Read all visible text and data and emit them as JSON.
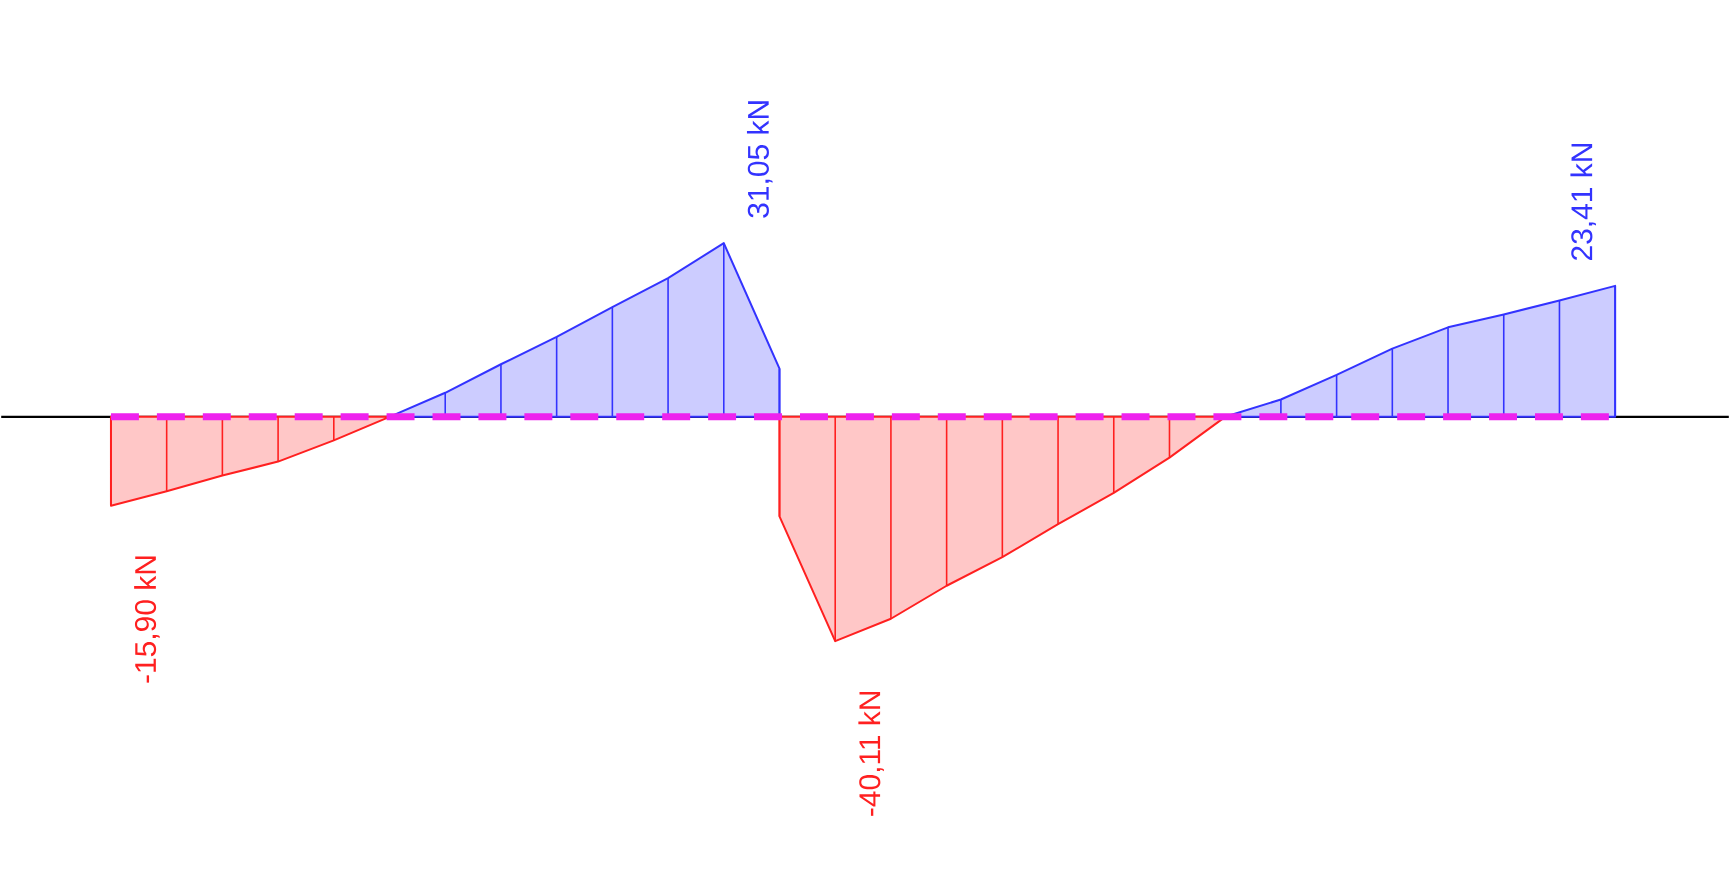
{
  "chart_data": {
    "type": "area",
    "categories": [
      null,
      null,
      null,
      null,
      null,
      null,
      null,
      null,
      null,
      null,
      null,
      null,
      null,
      null,
      null,
      null,
      null,
      null,
      null,
      null,
      null,
      null,
      null,
      null,
      null,
      null,
      null,
      null
    ],
    "series": [
      {
        "color": "#ff2020",
        "values": [
          -15.9,
          -13.3,
          -10.5,
          -8.0,
          -4.2,
          0,
          null,
          null,
          null,
          null,
          null,
          null,
          null,
          null,
          null,
          null,
          null,
          null,
          null,
          null,
          null,
          null,
          null,
          null,
          null,
          null,
          null,
          null
        ],
        "value_labels": [
          "-15,90 kN",
          null,
          null,
          null,
          null,
          null,
          null,
          null,
          null,
          null,
          null,
          null,
          null,
          null,
          null,
          null,
          null,
          null,
          null,
          null,
          null,
          null,
          null,
          null,
          null,
          null,
          null,
          null
        ]
      },
      {
        "color": "#3333ff",
        "values": [
          null,
          null,
          null,
          null,
          null,
          0,
          4.3,
          9.4,
          14.3,
          19.6,
          24.8,
          31.05,
          8.6,
          null,
          null,
          null,
          null,
          null,
          null,
          null,
          null,
          null,
          null,
          null,
          null,
          null,
          null,
          null
        ],
        "value_labels": [
          null,
          null,
          null,
          null,
          null,
          null,
          null,
          null,
          null,
          null,
          null,
          "31,05 kN",
          null,
          null,
          null,
          null,
          null,
          null,
          null,
          null,
          null,
          null,
          null,
          null,
          null,
          null,
          null,
          null
        ]
      },
      {
        "color": "#ff2020",
        "values": [
          null,
          null,
          null,
          null,
          null,
          null,
          null,
          null,
          null,
          null,
          null,
          null,
          -17.8,
          -40.11,
          -36.1,
          -30.2,
          -25.1,
          -19.2,
          -13.6,
          -7.3,
          0,
          null,
          null,
          null,
          null,
          null,
          null,
          null
        ],
        "value_labels": [
          null,
          null,
          null,
          null,
          null,
          null,
          null,
          null,
          null,
          null,
          null,
          null,
          null,
          "-40,11 kN",
          null,
          null,
          null,
          null,
          null,
          null,
          null,
          null,
          null,
          null,
          null,
          null,
          null,
          null
        ]
      },
      {
        "color": "#3333ff",
        "values": [
          null,
          null,
          null,
          null,
          null,
          null,
          null,
          null,
          null,
          null,
          null,
          null,
          null,
          null,
          null,
          null,
          null,
          null,
          null,
          null,
          0,
          3.1,
          7.5,
          12.2,
          16.0,
          18.3,
          20.8,
          23.41
        ],
        "value_labels": [
          null,
          null,
          null,
          null,
          null,
          null,
          null,
          null,
          null,
          null,
          null,
          null,
          null,
          null,
          null,
          null,
          null,
          null,
          null,
          null,
          null,
          null,
          null,
          null,
          null,
          null,
          null,
          "23,41 kN"
        ]
      }
    ],
    "ref_lines": [
      {
        "axis": "y",
        "value": 0,
        "color": "#ee22ee",
        "line_style": "dashed"
      }
    ]
  }
}
